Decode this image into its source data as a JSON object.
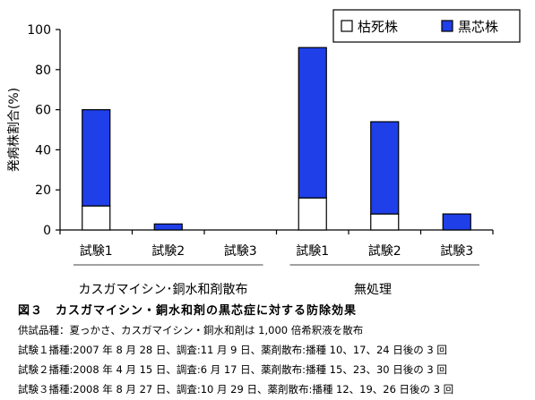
{
  "chart_data": {
    "type": "bar",
    "stacked": true,
    "ylabel": "発病株割合(%)",
    "ylim": [
      0,
      100
    ],
    "yticks": [
      0,
      20,
      40,
      60,
      80,
      100
    ],
    "categories": [
      "試験1",
      "試験2",
      "試験3",
      "試験1",
      "試験2",
      "試験3"
    ],
    "groups": [
      {
        "label": "カスガマイシン･銅水和剤散布",
        "categories": [
          0,
          1,
          2
        ]
      },
      {
        "label": "無処理",
        "categories": [
          3,
          4,
          5
        ]
      }
    ],
    "series": [
      {
        "name": "枯死株",
        "color": "#ffffff",
        "values": [
          12,
          0,
          0,
          16,
          8,
          0
        ]
      },
      {
        "name": "黒芯株",
        "color": "#1f3fe8",
        "values": [
          48,
          3,
          0,
          75,
          46,
          8
        ]
      }
    ],
    "legend": "top-right",
    "grid": false
  },
  "caption": {
    "title": "図３　カスガマイシン・銅水和剤の黒芯症に対する防除効果",
    "lines": [
      "供試品種：夏っかさ、カスガマイシン・銅水和剤は 1,000 倍希釈液を散布",
      "試験１播種:2007 年 8 月 28 日、調査:11 月 9 日、薬剤散布:播種 10、17、24 日後の 3 回",
      "試験２播種:2008 年 4 月 15 日、調査:6 月 17 日、薬剤散布:播種 15、23、30 日後の 3 回",
      "試験３播種:2008 年 8 月 27 日、調査:10 月 29 日、薬剤散布:播種 12、19、26 日後の 3 回"
    ]
  }
}
